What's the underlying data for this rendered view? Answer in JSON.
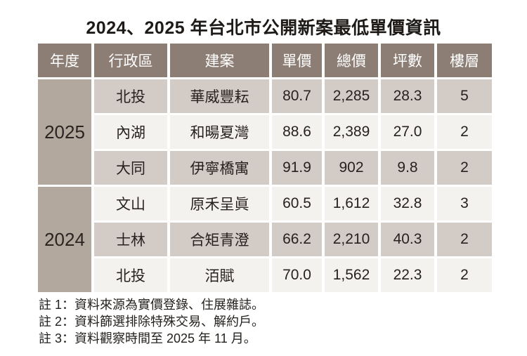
{
  "title": "2024、2025 年台北市公開新案最低單價資訊",
  "table": {
    "headers": [
      "年度",
      "行政區",
      "建案",
      "單價",
      "總價",
      "坪數",
      "樓層"
    ],
    "groups": [
      {
        "year": "2025",
        "rows": [
          [
            "北投",
            "華威豐耘",
            "80.7",
            "2,285",
            "28.3",
            "5"
          ],
          [
            "內湖",
            "和暘夏灣",
            "88.6",
            "2,389",
            "27.0",
            "2"
          ],
          [
            "大同",
            "伊寧橋寓",
            "91.9",
            "902",
            "9.8",
            "2"
          ]
        ]
      },
      {
        "year": "2024",
        "rows": [
          [
            "文山",
            "原禾呈眞",
            "60.5",
            "1,612",
            "32.8",
            "3"
          ],
          [
            "士林",
            "合矩青澄",
            "66.2",
            "2,210",
            "40.3",
            "2"
          ],
          [
            "北投",
            "洦賦",
            "70.0",
            "1,562",
            "22.3",
            "2"
          ]
        ]
      }
    ]
  },
  "notes": [
    "註 1：資料來源為實價登錄、住展雜誌。",
    "註 2：資料篩選排除特殊交易、解約戶。",
    "註 3：資料觀察時間至 2025 年 11 月。"
  ],
  "colors": {
    "header_bg": "#8C7E74",
    "year_cell_bg": "#B3A89E",
    "row_gray_bg": "#D3CCC6",
    "row_light_bg": "#F4F2EF",
    "header_text": "#FFFFFF",
    "body_text": "#272220",
    "page_bg": "#FFFFFF"
  },
  "chart_data": {
    "type": "table",
    "title": "2024、2025 年台北市公開新案最低單價資訊",
    "columns": [
      "年度",
      "行政區",
      "建案",
      "單價",
      "總價",
      "坪數",
      "樓層"
    ],
    "rows": [
      [
        "2025",
        "北投",
        "華威豐耘",
        80.7,
        2285,
        28.3,
        5
      ],
      [
        "2025",
        "內湖",
        "和暘夏灣",
        88.6,
        2389,
        27.0,
        2
      ],
      [
        "2025",
        "大同",
        "伊寧橋寓",
        91.9,
        902,
        9.8,
        2
      ],
      [
        "2024",
        "文山",
        "原禾呈眞",
        60.5,
        1612,
        32.8,
        3
      ],
      [
        "2024",
        "士林",
        "合矩青澄",
        66.2,
        2210,
        40.3,
        2
      ],
      [
        "2024",
        "北投",
        "洦賦",
        70.0,
        1562,
        22.3,
        2
      ]
    ],
    "notes": [
      "註 1：資料來源為實價登錄、住展雜誌。",
      "註 2：資料篩選排除特殊交易、解約戶。",
      "註 3：資料觀察時間至 2025 年 11 月。"
    ],
    "layout_hints": {
      "year_column_merged": true,
      "row_striping": "gray/light alternating",
      "grid": "white gaps between cells"
    }
  }
}
